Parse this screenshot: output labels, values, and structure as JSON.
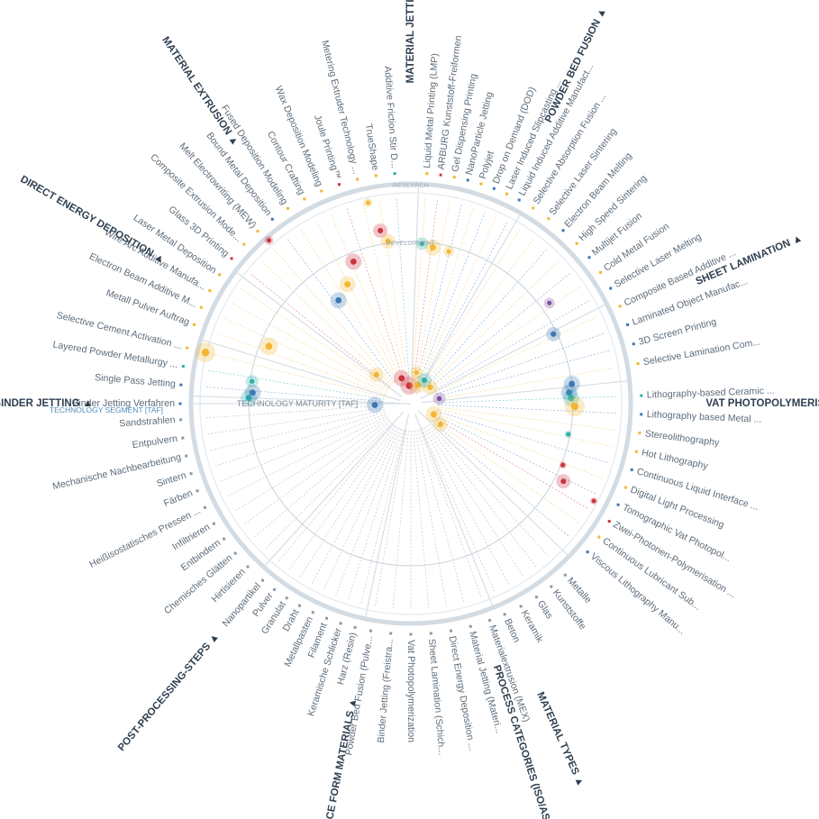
{
  "title_axis": {
    "research": "RESEARCH",
    "development": "DEVELOPMENT",
    "maturity": "TECHNOLOGY MATURITY [TAF]",
    "segment_caption": "TECHNOLOGY SEGMENT [TAF]"
  },
  "colors": {
    "ring": "#d3dbe3",
    "spoke": "#d9dee4",
    "text": "#5d6c7a",
    "heading": "#2f3f50",
    "yellow": "#f2b731",
    "blue": "#3b78b5",
    "red": "#cc3340",
    "purple": "#7a4f9d",
    "teal": "#2ab0a8",
    "grey": "#8d9aa6"
  },
  "segments": [
    {
      "title": "MATERIAL JETTING",
      "items": [
        "Liquid Metal Printing (LMP)",
        "ARBURG Kunststoff-Freiformen",
        "Gel Dispensing Printing",
        "NanoParticle Jetting",
        "Polyjet",
        "Drop on Demand (DOD)",
        "Laser Induced Slipcasting ...",
        "Liquid Induced Additive Manufact..."
      ],
      "markers": [
        "yellow",
        "red",
        "yellow",
        "blue",
        "yellow",
        "blue",
        "yellow",
        "blue"
      ]
    },
    {
      "title": "POWDER BED FUSION",
      "items": [
        "Selective Absorption Fusion ...",
        "Selective Laser Sintering",
        "Electron Beam Melting",
        "High Speed Sintering",
        "Multijet Fusion",
        "Cold Metal Fusion",
        "Selective Laser Melting"
      ],
      "markers": [
        "yellow",
        "yellow",
        "blue",
        "yellow",
        "blue",
        "yellow",
        "blue"
      ]
    },
    {
      "title": "SHEET LAMINATION",
      "items": [
        "Composite Based Additive ...",
        "Laminated Object Manufac...",
        "3D Screen Printing",
        "Selective Lamination Com..."
      ],
      "markers": [
        "yellow",
        "blue",
        "blue",
        "yellow"
      ]
    },
    {
      "title": "VAT PHOTOPOLYMERISATION",
      "items": [
        "Lithography-based Ceramic ...",
        "Lithography based Metal ...",
        "Stereolithography",
        "Hot Lithography",
        "Continuous Liquid Interface ...",
        "Digital Light Processing",
        "Tomographic Vat Photopol...",
        "Zwei-Photonen-Polymerisation ...",
        "Continuous Lubricant Sub...",
        "Viscous Lithography Manu..."
      ],
      "markers": [
        "teal",
        "blue",
        "yellow",
        "yellow",
        "blue",
        "yellow",
        "blue",
        "red",
        "yellow",
        "blue"
      ]
    },
    {
      "title": "MATERIAL TYPES",
      "items": [
        "Metalle",
        "Kunststoffe",
        "Glas",
        "Keramik",
        "Beton"
      ],
      "markers": [
        "grey",
        "grey",
        "grey",
        "grey",
        "grey"
      ]
    },
    {
      "title": "PROCESS CATEGORIES (ISO/ASTM ...",
      "items": [
        "Materialextrusion (MEX)",
        "Material Jetting (Materi...",
        "Direct Energy Deposition ...",
        "Sheet Lamination (Schich...",
        "Vat Photopolymerization",
        "Binder Jetting (Freistra...",
        "Powder Bed Fusion (Pulve..."
      ],
      "markers": [
        "grey",
        "grey",
        "grey",
        "grey",
        "grey",
        "grey",
        "grey"
      ]
    },
    {
      "title": "SOURCE FORM MATERIALS",
      "items": [
        "Harz (Resin)",
        "Keramische Schlicker",
        "Filament",
        "Metallpasten",
        "Draht",
        "Granulat",
        "Pulver",
        "Nanopartikel"
      ],
      "markers": [
        "grey",
        "grey",
        "grey",
        "grey",
        "grey",
        "grey",
        "grey",
        "grey"
      ]
    },
    {
      "title": "POST-PROCESSING-STEPS",
      "items": [
        "Hirtisieren",
        "Chemisches Glätten",
        "Entbindern",
        "Infiltrieren",
        "Heißisostatisches Pressen ...",
        "Färben",
        "Sintern",
        "Mechanische Nachbearbeitung",
        "Entpulvern",
        "Sandstrahlen"
      ],
      "markers": [
        "grey",
        "grey",
        "grey",
        "grey",
        "grey",
        "grey",
        "grey",
        "grey",
        "grey",
        "grey"
      ]
    },
    {
      "title": "BINDER JETTING",
      "items": [
        "Binder Jetting Verfahren",
        "Single Pass Jetting",
        "Layered Powder Metallurgy ...",
        "Selective Cement Activation ..."
      ],
      "markers": [
        "blue",
        "blue",
        "teal",
        "yellow"
      ]
    },
    {
      "title": "DIRECT ENERGY DEPOSITION",
      "items": [
        "Metall Pulver Auftrag",
        "Electron Beam Additive M...",
        "Wire Arc Additive Manufa...",
        "Laser Metal Deposition"
      ],
      "markers": [
        "yellow",
        "yellow",
        "yellow",
        "yellow"
      ]
    },
    {
      "title": "MATERIAL EXTRUSION",
      "items": [
        "Glass 3D Printing",
        "Composite Extrusion Mode...",
        "Melt Electrowriting (MEW)",
        "Bound Metal Deposition",
        "Fused Deposition Modeling",
        "Contour Crafting",
        "Wax Deposition Modeling",
        "Joule Printing™",
        "Metering Extruder Technology ...",
        "TrueShape",
        "Additive Friction Stir D..."
      ],
      "markers": [
        "red",
        "yellow",
        "yellow",
        "blue",
        "yellow",
        "yellow",
        "yellow",
        "red",
        "yellow",
        "yellow",
        "teal"
      ]
    }
  ]
}
